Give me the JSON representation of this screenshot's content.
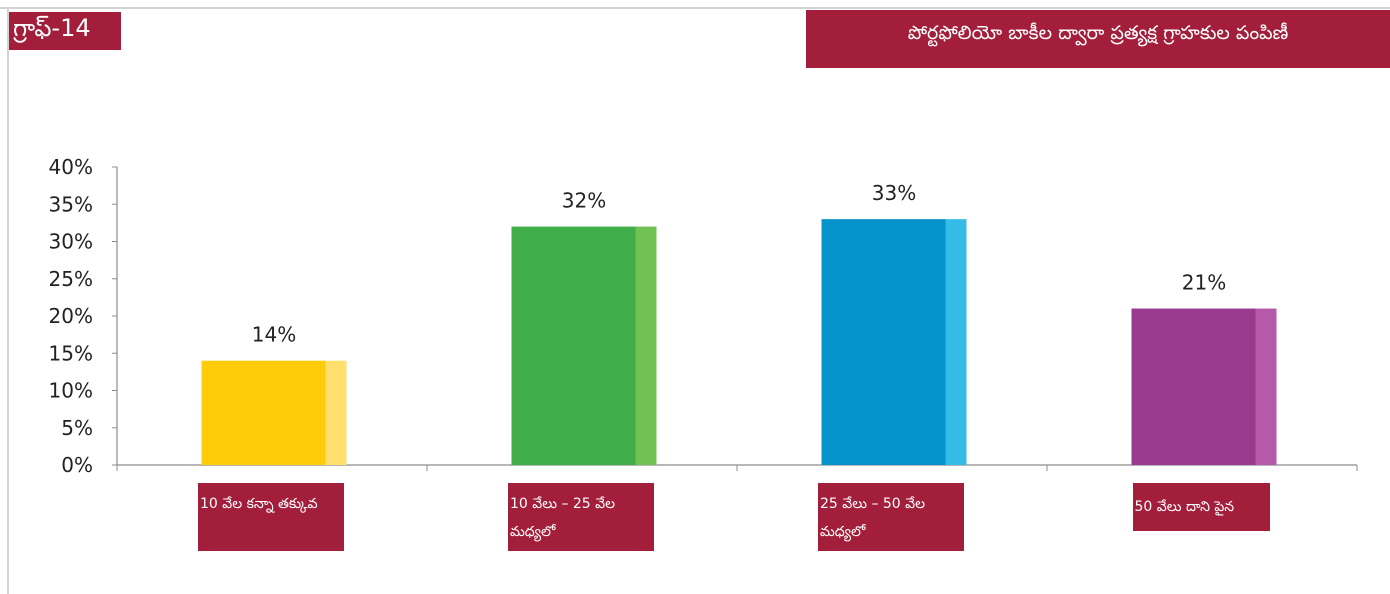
{
  "graph_label": "గ్రాఫ్-14",
  "colors": {
    "accent": "#a31e3a",
    "bars": [
      "#ffcc0a",
      "#40ad4b",
      "#0493cb",
      "#993a8f"
    ],
    "bar_highlights": [
      "#ffe06e",
      "#71c155",
      "#34bbe6",
      "#b55aa8"
    ]
  },
  "chart_data": {
    "type": "bar",
    "title": "పోర్టఫోలియో బాకీల ద్వారా ప్రత్యక్ష గ్రాహకుల పంపిణీ",
    "categories": [
      "10 వేల కన్నా తక్కువ",
      "10 వేలు – 25 వేల మధ్యలో",
      "25 వేలు – 50 వేల మధ్యలో",
      "50 వేలు దాని పైన"
    ],
    "values": [
      14,
      32,
      33,
      21
    ],
    "value_labels": [
      "14%",
      "32%",
      "33%",
      "21%"
    ],
    "y_ticks": [
      "0%",
      "5%",
      "10%",
      "15%",
      "20%",
      "25%",
      "30%",
      "35%",
      "40%"
    ],
    "ylim": [
      0,
      40
    ],
    "xlabel": "",
    "ylabel": "",
    "grid": false,
    "legend": "none"
  }
}
